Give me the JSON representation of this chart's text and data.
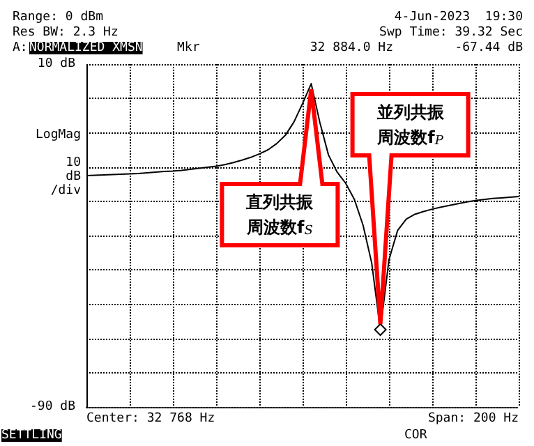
{
  "chart_data": {
    "type": "line",
    "categories": [
      null,
      null,
      null,
      null,
      null,
      null,
      null,
      null,
      null,
      null,
      null,
      null,
      null,
      null,
      null,
      null,
      null,
      null,
      null,
      null,
      null,
      null,
      null,
      null,
      null,
      null,
      null,
      null,
      null,
      null,
      null,
      null,
      null,
      null,
      null,
      null,
      null,
      null,
      null,
      null,
      null,
      null,
      null,
      null,
      null,
      null,
      null,
      null,
      null,
      null,
      null
    ],
    "series": [
      {
        "color": "#000000",
        "values": [
          -22.5,
          -22.4,
          -22.3,
          -22.2,
          -22.1,
          -22,
          -21.9,
          -21.7,
          -21.5,
          -21.3,
          -21.2,
          -21,
          -20.7,
          -20.4,
          -20.1,
          -19.8,
          -19.3,
          -18.7,
          -18,
          -17.2,
          -16.2,
          -15,
          -13.2,
          -10.8,
          -6.9,
          -1.5,
          4.3,
          -7,
          -16.5,
          -21.5,
          -24.8,
          -29.5,
          -37,
          -48,
          -67.44,
          -47,
          -38.5,
          -35.2,
          -33.8,
          -33,
          -32.3,
          -31.7,
          -31.2,
          -30.7,
          -30.2,
          -29.8,
          -29.5,
          -29.2,
          -29,
          -28.8,
          -28.6
        ]
      }
    ],
    "ylim": [
      -90,
      10
    ],
    "yticks": [
      {
        "value": -90,
        "label": "-90 dB"
      },
      {
        "value": -80,
        "label": null
      },
      {
        "value": -70,
        "label": null
      },
      {
        "value": -60,
        "label": null
      },
      {
        "value": -50,
        "label": null
      },
      {
        "value": -40,
        "label": null
      },
      {
        "value": -30,
        "label": null
      },
      {
        "value": -20,
        "label": null
      },
      {
        "value": -10,
        "label": null
      },
      {
        "value": 0,
        "label": null
      },
      {
        "value": 10,
        "label": "10 dB"
      }
    ],
    "ylabel": "LogMag 10 dB /div",
    "tick_labels": "y",
    "grid": true,
    "line_style": "solid",
    "annotations": [
      "Range: 0 dBm",
      "Res BW: 2.3 Hz",
      "4-Jun-2023  19:30",
      "Swp Time: 39.32 Sec",
      "A:",
      "NORMALIZED XMSN",
      "Mkr",
      "32 884.0 Hz",
      "-67.44 dB",
      "Center: 32 768 Hz",
      "Span: 200 Hz",
      "SETTLING",
      "COR",
      "直列共振周波数f$_{S}$",
      "並列共振周波数f$_{P}$"
    ]
  }
}
